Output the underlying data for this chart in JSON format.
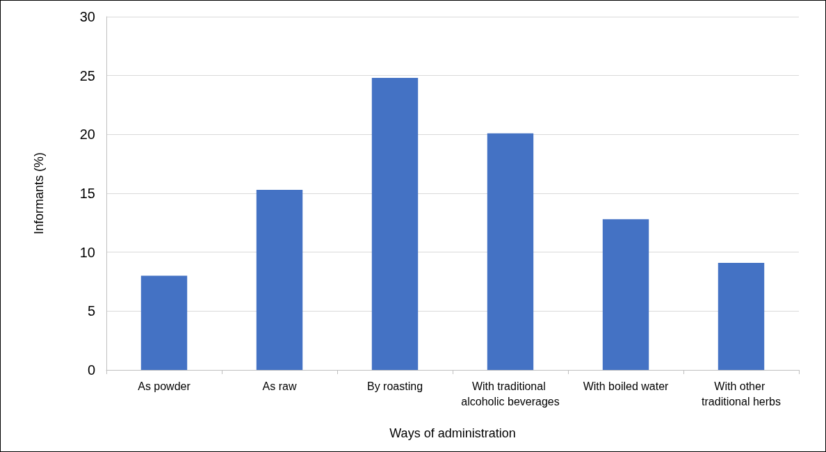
{
  "chart_data": {
    "type": "bar",
    "xlabel": "Ways of administration",
    "ylabel": "Informants (%)",
    "categories": [
      "As powder",
      "As raw",
      "By roasting",
      "With traditional alcoholic beverages",
      "With boiled water",
      "With other traditional herbs"
    ],
    "values": [
      8.0,
      15.3,
      24.8,
      20.1,
      12.8,
      9.1
    ],
    "color": "#4472c4",
    "ylim": [
      0,
      30
    ],
    "yticks": [
      0,
      5,
      10,
      15,
      20,
      25,
      30
    ],
    "grid": "y"
  }
}
